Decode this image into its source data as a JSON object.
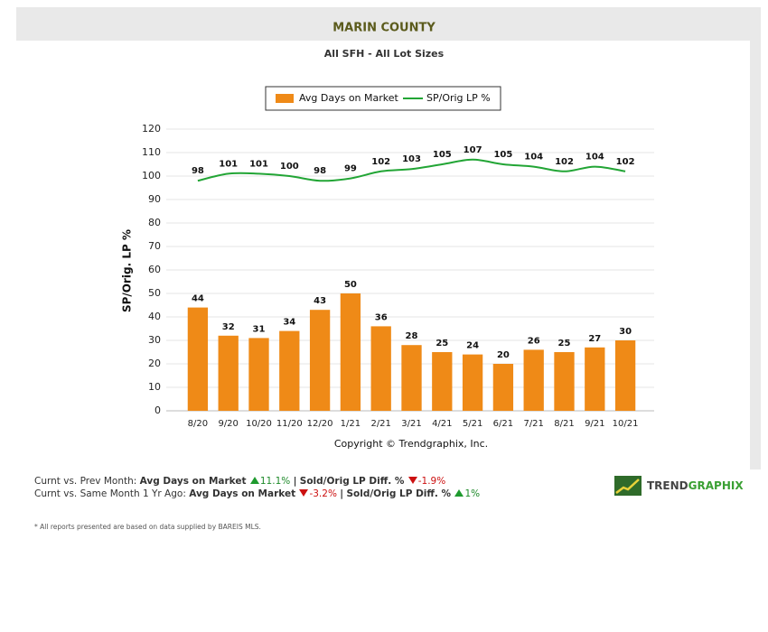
{
  "chart_data": {
    "type": "bar",
    "title": "MARIN COUNTY",
    "subtitle": "All SFH - All Lot Sizes",
    "y_label": "SP/Orig. LP %",
    "copyright": "Copyright © Trendgraphix, Inc.",
    "categories": [
      "8/20",
      "9/20",
      "10/20",
      "11/20",
      "12/20",
      "1/21",
      "2/21",
      "3/21",
      "4/21",
      "5/21",
      "6/21",
      "7/21",
      "8/21",
      "9/21",
      "10/21"
    ],
    "series": [
      {
        "name": "Avg Days on Market",
        "type": "bar",
        "color": "#ef8a17",
        "values": [
          44,
          32,
          31,
          34,
          43,
          50,
          36,
          28,
          25,
          24,
          20,
          26,
          25,
          27,
          30
        ]
      },
      {
        "name": "SP/Orig LP %",
        "type": "line",
        "color": "#22a535",
        "values": [
          98,
          101,
          101,
          100,
          98,
          99,
          102,
          103,
          105,
          107,
          105,
          104,
          102,
          104,
          102
        ]
      }
    ],
    "ylim": [
      0,
      120
    ],
    "yticks": [
      0,
      10,
      20,
      30,
      40,
      50,
      60,
      70,
      80,
      90,
      100,
      110,
      120
    ],
    "grid": true
  },
  "footer": {
    "rows": [
      {
        "label": "Curnt vs. Prev Month:",
        "metric1": "Avg Days on Market",
        "change1": "11.1%",
        "dir1": "up",
        "separator": "|",
        "metric2": "Sold/Orig LP Diff. %",
        "change2": "-1.9%",
        "dir2": "down"
      },
      {
        "label": "Curnt vs. Same Month 1 Yr Ago:",
        "metric1": "Avg Days on Market",
        "change1": "-3.2%",
        "dir1": "down",
        "separator": "|",
        "metric2": "Sold/Orig LP Diff. %",
        "change2": "1%",
        "dir2": "up"
      }
    ],
    "note": "* All reports presented are based on data supplied by BAREIS MLS.",
    "logo": {
      "part1": "TREND",
      "part2": "GRAPHIX"
    }
  }
}
